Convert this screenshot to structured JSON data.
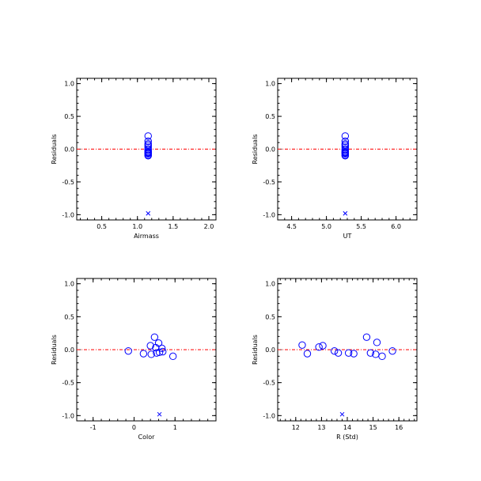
{
  "chart_data": [
    {
      "type": "scatter",
      "xlabel": "Airmass",
      "ylabel": "Residuals",
      "xlim": [
        0.15,
        2.1
      ],
      "ylim": [
        -1.08,
        1.08
      ],
      "xticks": [
        0.5,
        1.0,
        1.5,
        2.0
      ],
      "xtick_labels": [
        "0.5",
        "1.0",
        "1.5",
        "2.0"
      ],
      "xminor": 0.1,
      "yticks": [
        -1.0,
        -0.5,
        0.0,
        0.5,
        1.0
      ],
      "ytick_labels": [
        "-1.0",
        "-0.5",
        "0.0",
        "0.5",
        "1.0"
      ],
      "yminor": 0.1,
      "zero_line": 0.0,
      "points": [
        {
          "x": 1.15,
          "y": 0.2
        },
        {
          "x": 1.15,
          "y": 0.12
        },
        {
          "x": 1.15,
          "y": 0.08
        },
        {
          "x": 1.15,
          "y": 0.06
        },
        {
          "x": 1.15,
          "y": 0.03
        },
        {
          "x": 1.15,
          "y": 0.0
        },
        {
          "x": 1.15,
          "y": -0.02
        },
        {
          "x": 1.15,
          "y": -0.04
        },
        {
          "x": 1.15,
          "y": -0.05
        },
        {
          "x": 1.15,
          "y": -0.06
        },
        {
          "x": 1.15,
          "y": -0.07
        },
        {
          "x": 1.15,
          "y": -0.09
        },
        {
          "x": 1.15,
          "y": -0.1
        }
      ],
      "rejected": [
        {
          "x": 1.15,
          "y": -0.98
        }
      ]
    },
    {
      "type": "scatter",
      "xlabel": "UT",
      "ylabel": "Residuals",
      "xlim": [
        4.3,
        6.3
      ],
      "ylim": [
        -1.08,
        1.08
      ],
      "xticks": [
        4.5,
        5.0,
        5.5,
        6.0
      ],
      "xtick_labels": [
        "4.5",
        "5.0",
        "5.5",
        "6.0"
      ],
      "xminor": 0.1,
      "yticks": [
        -1.0,
        -0.5,
        0.0,
        0.5,
        1.0
      ],
      "ytick_labels": [
        "-1.0",
        "-0.5",
        "0.0",
        "0.5",
        "1.0"
      ],
      "yminor": 0.1,
      "zero_line": 0.0,
      "points": [
        {
          "x": 5.27,
          "y": 0.2
        },
        {
          "x": 5.27,
          "y": 0.12
        },
        {
          "x": 5.27,
          "y": 0.08
        },
        {
          "x": 5.27,
          "y": 0.06
        },
        {
          "x": 5.27,
          "y": 0.03
        },
        {
          "x": 5.27,
          "y": 0.0
        },
        {
          "x": 5.27,
          "y": -0.02
        },
        {
          "x": 5.27,
          "y": -0.04
        },
        {
          "x": 5.27,
          "y": -0.05
        },
        {
          "x": 5.27,
          "y": -0.06
        },
        {
          "x": 5.27,
          "y": -0.07
        },
        {
          "x": 5.27,
          "y": -0.09
        },
        {
          "x": 5.27,
          "y": -0.1
        }
      ],
      "rejected": [
        {
          "x": 5.27,
          "y": -0.98
        }
      ]
    },
    {
      "type": "scatter",
      "xlabel": "Color",
      "ylabel": "Residuals",
      "xlim": [
        -1.4,
        2.0
      ],
      "ylim": [
        -1.08,
        1.08
      ],
      "xticks": [
        -1,
        0,
        1
      ],
      "xtick_labels": [
        "-1",
        "0",
        "1"
      ],
      "xminor": 0.2,
      "yticks": [
        -1.0,
        -0.5,
        0.0,
        0.5,
        1.0
      ],
      "ytick_labels": [
        "-1.0",
        "-0.5",
        "0.0",
        "0.5",
        "1.0"
      ],
      "yminor": 0.1,
      "zero_line": 0.0,
      "points": [
        {
          "x": -0.14,
          "y": -0.02
        },
        {
          "x": 0.23,
          "y": -0.06
        },
        {
          "x": 0.4,
          "y": 0.06
        },
        {
          "x": 0.42,
          "y": -0.07
        },
        {
          "x": 0.5,
          "y": 0.19
        },
        {
          "x": 0.53,
          "y": 0.03
        },
        {
          "x": 0.55,
          "y": -0.05
        },
        {
          "x": 0.6,
          "y": 0.1
        },
        {
          "x": 0.62,
          "y": -0.04
        },
        {
          "x": 0.68,
          "y": 0.02
        },
        {
          "x": 0.7,
          "y": -0.03
        },
        {
          "x": 0.95,
          "y": -0.1
        }
      ],
      "rejected": [
        {
          "x": 0.62,
          "y": -0.98
        }
      ]
    },
    {
      "type": "scatter",
      "xlabel": "R (Std)",
      "ylabel": "Residuals",
      "xlim": [
        11.3,
        16.7
      ],
      "ylim": [
        -1.08,
        1.08
      ],
      "xticks": [
        12,
        13,
        14,
        15,
        16
      ],
      "xtick_labels": [
        "12",
        "13",
        "14",
        "15",
        "16"
      ],
      "xminor": 0.2,
      "yticks": [
        -1.0,
        -0.5,
        0.0,
        0.5,
        1.0
      ],
      "ytick_labels": [
        "-1.0",
        "-0.5",
        "0.0",
        "0.5",
        "1.0"
      ],
      "yminor": 0.1,
      "zero_line": 0.0,
      "points": [
        {
          "x": 12.25,
          "y": 0.07
        },
        {
          "x": 12.45,
          "y": -0.06
        },
        {
          "x": 12.9,
          "y": 0.04
        },
        {
          "x": 13.05,
          "y": 0.06
        },
        {
          "x": 13.5,
          "y": -0.02
        },
        {
          "x": 13.65,
          "y": -0.05
        },
        {
          "x": 14.05,
          "y": -0.05
        },
        {
          "x": 14.25,
          "y": -0.06
        },
        {
          "x": 14.75,
          "y": 0.19
        },
        {
          "x": 14.9,
          "y": -0.05
        },
        {
          "x": 15.1,
          "y": -0.07
        },
        {
          "x": 15.15,
          "y": 0.11
        },
        {
          "x": 15.35,
          "y": -0.1
        },
        {
          "x": 15.75,
          "y": -0.02
        }
      ],
      "rejected": [
        {
          "x": 13.8,
          "y": -0.98
        }
      ]
    }
  ],
  "colors": {
    "marker": "#0000ff",
    "zero_line": "#ff0000",
    "axes": "#000000"
  }
}
